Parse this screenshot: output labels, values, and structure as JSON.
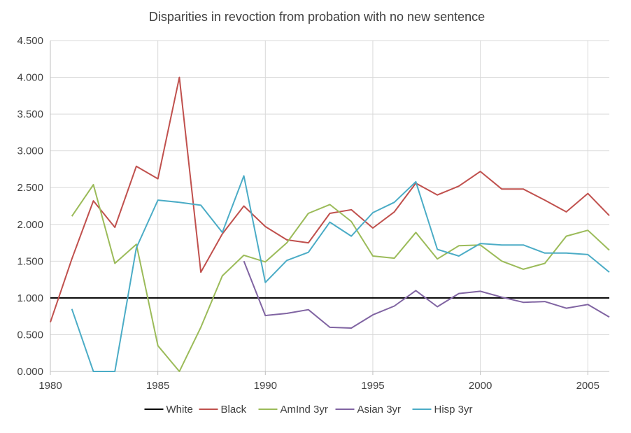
{
  "chart_data": {
    "type": "line",
    "title": "Disparities in revoction from probation with no new sentence",
    "xlabel": "",
    "ylabel": "",
    "xlim": [
      1980,
      2006
    ],
    "ylim": [
      0,
      4.5
    ],
    "x_ticks": [
      "1980",
      "1985",
      "1990",
      "1995",
      "2000",
      "2005"
    ],
    "y_ticks": [
      "0.000",
      "0.500",
      "1.000",
      "1.500",
      "2.000",
      "2.500",
      "3.000",
      "3.500",
      "4.000",
      "4.500"
    ],
    "grid": "horizontal",
    "legend_position": "bottom",
    "series": [
      {
        "name": "White",
        "color": "#000000",
        "x": [
          1980,
          1981,
          1982,
          1983,
          1984,
          1985,
          1986,
          1987,
          1988,
          1989,
          1990,
          1991,
          1992,
          1993,
          1994,
          1995,
          1996,
          1997,
          1998,
          1999,
          2000,
          2001,
          2002,
          2003,
          2004,
          2005,
          2006
        ],
        "values": [
          1,
          1,
          1,
          1,
          1,
          1,
          1,
          1,
          1,
          1,
          1,
          1,
          1,
          1,
          1,
          1,
          1,
          1,
          1,
          1,
          1,
          1,
          1,
          1,
          1,
          1,
          1
        ]
      },
      {
        "name": "Black",
        "color": "#c0504d",
        "x": [
          1980,
          1981,
          1982,
          1983,
          1984,
          1985,
          1986,
          1987,
          1988,
          1989,
          1990,
          1991,
          1992,
          1993,
          1994,
          1995,
          1996,
          1997,
          1998,
          1999,
          2000,
          2001,
          2002,
          2003,
          2004,
          2005,
          2006
        ],
        "values": [
          0.67,
          1.53,
          2.32,
          1.96,
          2.79,
          2.62,
          4.0,
          1.35,
          1.87,
          2.25,
          1.97,
          1.79,
          1.75,
          2.15,
          2.2,
          1.95,
          2.17,
          2.56,
          2.4,
          2.52,
          2.72,
          2.48,
          2.48,
          2.33,
          2.17,
          2.42,
          2.12
        ]
      },
      {
        "name": "AmInd 3yr",
        "color": "#9bbb59",
        "x": [
          1981,
          1982,
          1983,
          1984,
          1985,
          1986,
          1987,
          1988,
          1989,
          1990,
          1991,
          1992,
          1993,
          1994,
          1995,
          1996,
          1997,
          1998,
          1999,
          2000,
          2001,
          2002,
          2003,
          2004,
          2005,
          2006
        ],
        "values": [
          2.11,
          2.54,
          1.47,
          1.73,
          0.35,
          0.0,
          0.6,
          1.3,
          1.58,
          1.49,
          1.75,
          2.15,
          2.27,
          2.04,
          1.57,
          1.54,
          1.89,
          1.53,
          1.71,
          1.72,
          1.5,
          1.39,
          1.47,
          1.84,
          1.92,
          1.65
        ]
      },
      {
        "name": "Asian 3yr",
        "color": "#8064a2",
        "x": [
          1989,
          1990,
          1991,
          1992,
          1993,
          1994,
          1995,
          1996,
          1997,
          1998,
          1999,
          2000,
          2001,
          2002,
          2003,
          2004,
          2005,
          2006
        ],
        "values": [
          1.5,
          0.76,
          0.79,
          0.84,
          0.6,
          0.59,
          0.77,
          0.89,
          1.1,
          0.88,
          1.06,
          1.09,
          1.01,
          0.94,
          0.95,
          0.86,
          0.91,
          0.74
        ]
      },
      {
        "name": "Hisp 3yr",
        "color": "#4bacc6",
        "x": [
          1981,
          1982,
          1983,
          1984,
          1985,
          1986,
          1987,
          1988,
          1989,
          1990,
          1991,
          1992,
          1993,
          1994,
          1995,
          1996,
          1997,
          1998,
          1999,
          2000,
          2001,
          2002,
          2003,
          2004,
          2005,
          2006
        ],
        "values": [
          0.85,
          0.0,
          0.0,
          1.68,
          2.33,
          2.3,
          2.26,
          1.89,
          2.66,
          1.21,
          1.51,
          1.62,
          2.03,
          1.84,
          2.16,
          2.3,
          2.58,
          1.66,
          1.57,
          1.74,
          1.72,
          1.72,
          1.61,
          1.61,
          1.59,
          1.35
        ]
      }
    ]
  }
}
